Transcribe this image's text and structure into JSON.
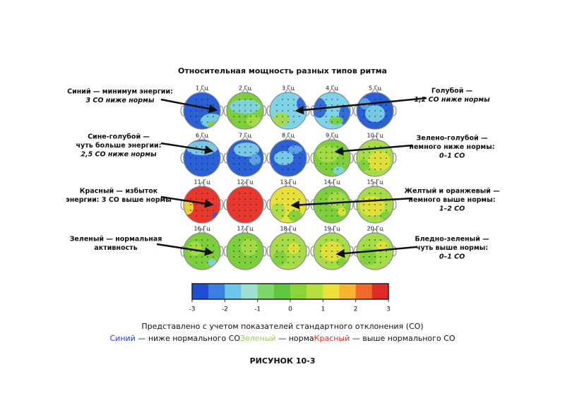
{
  "title": "Относительная мощность разных типов ритма",
  "heads": [
    "1 Гц",
    "2 Гц",
    "3 Гц",
    "4 Гц",
    "5 Гц",
    "6 Гц",
    "7 Гц",
    "8 Гц",
    "9 Гц",
    "10 Гц",
    "11 Гц",
    "12 Гц",
    "13 Гц",
    "14 Гц",
    "15 Гц",
    "16 Гц",
    "17 Гц",
    "18 Гц",
    "19 Гц",
    "20 Гц"
  ],
  "annotations": [
    {
      "lines": [
        "Синий — минимум энергии:",
        "3 СО ниже нормы"
      ]
    },
    {
      "lines": [
        "Сине-голубой —",
        "чуть больше энергии:",
        "2,5 СО ниже нормы"
      ]
    },
    {
      "lines": [
        "Красный — избыток",
        "энергии: 3 СО выше нормы"
      ]
    },
    {
      "lines": [
        "Зеленый — нормальная",
        "активность"
      ]
    },
    {
      "lines": [
        "Голубой —",
        "1,2 СО ниже нормы"
      ]
    },
    {
      "lines": [
        "Зелено-голубой —",
        "немного ниже нормы:",
        "0–1 СО"
      ]
    },
    {
      "lines": [
        "Желтый и оранжевый —",
        "немного выше нормы:",
        "1–2 СО"
      ]
    },
    {
      "lines": [
        "Бледно-зеленый —",
        "чуть выше нормы:",
        "0–1 СО"
      ]
    }
  ],
  "scale": {
    "ticks": [
      -3,
      -2,
      -1,
      0,
      1,
      2,
      3
    ]
  },
  "note": "Представлено с учетом показателей стандартного отклонения (СО)",
  "legend": [
    {
      "key": "Синий",
      "text": " — ниже нормального СО"
    },
    {
      "key": "Зеленый",
      "text": " — норма"
    },
    {
      "key": "Красный",
      "text": " — выше нормального СО"
    }
  ],
  "caption": "РИСУНОК 10-3"
}
